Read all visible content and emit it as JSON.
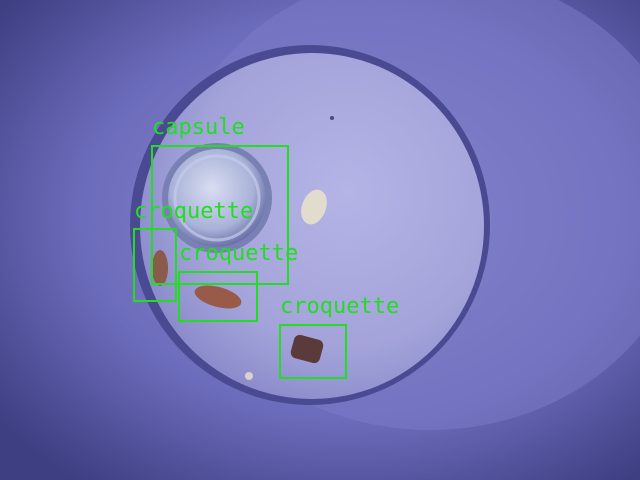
{
  "detections": [
    {
      "label": "capsule"
    },
    {
      "label": "croquette"
    },
    {
      "label": "croquette"
    },
    {
      "label": "croquette"
    }
  ],
  "colors": {
    "box": "#22dd22",
    "background": "#5a5aa8",
    "bowl": "#a7a7dc"
  }
}
